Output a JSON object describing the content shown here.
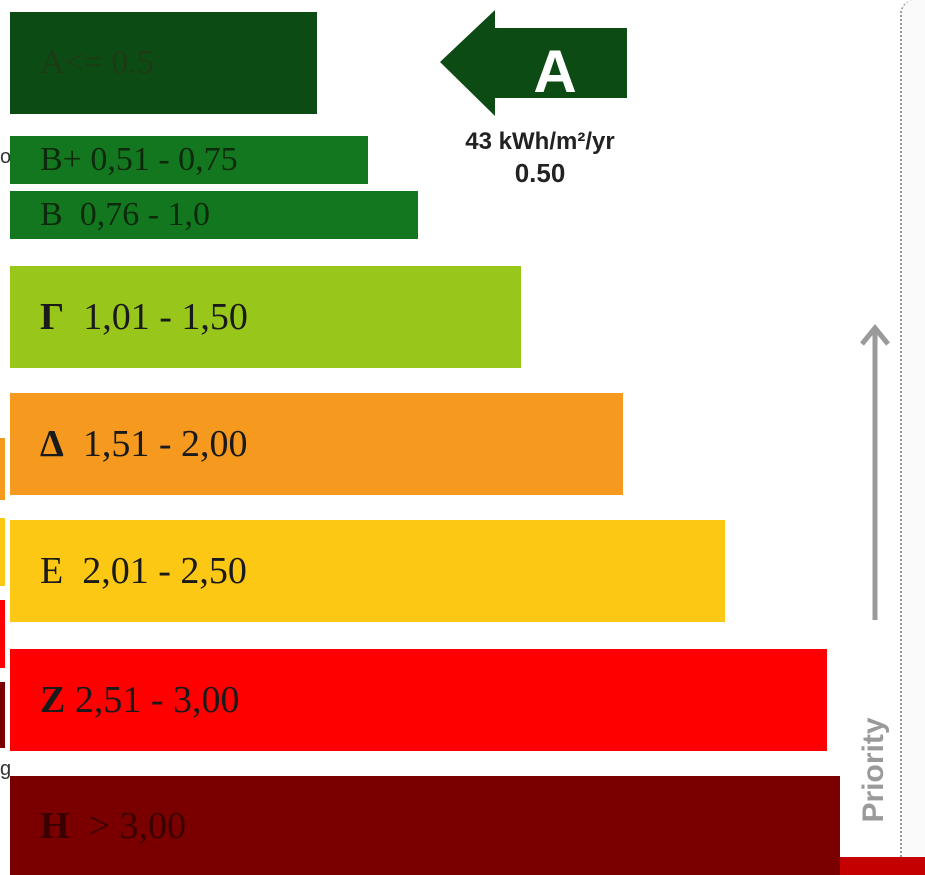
{
  "chart_data": {
    "type": "bar",
    "orientation": "horizontal",
    "categories": [
      "A",
      "B+",
      "B",
      "Γ",
      "Δ",
      "E",
      "Z",
      "H"
    ],
    "bands": [
      {
        "letter": "A",
        "range": "<=  0.5",
        "color": "#0d4b14"
      },
      {
        "letter": "B+",
        "range": "0,51 - 0,75",
        "color": "#13771f"
      },
      {
        "letter": "B",
        "range": "0,76 - 1,0",
        "color": "#13771f"
      },
      {
        "letter": "Γ",
        "range": "1,01 - 1,50",
        "color": "#99c61a"
      },
      {
        "letter": "Δ",
        "range": "1,51 - 2,00",
        "color": "#f59a1f"
      },
      {
        "letter": "E",
        "range": "2,01 - 2,50",
        "color": "#fcc813"
      },
      {
        "letter": "Z",
        "range": "2,51 - 3,00",
        "color": "#ff0000"
      },
      {
        "letter": "H",
        "range": "> 3,00",
        "color": "#7a0000"
      }
    ],
    "rating": {
      "letter": "A",
      "energy": "43 kWh/m²/yr",
      "value": "0.50",
      "color": "#0d4b14"
    },
    "priority_label": "Priority"
  },
  "edge": {
    "text_top": "o",
    "text_bottom": "g",
    "colors": [
      "#f59a1f",
      "#fcc813",
      "#ff0000",
      "#7a0000"
    ]
  }
}
